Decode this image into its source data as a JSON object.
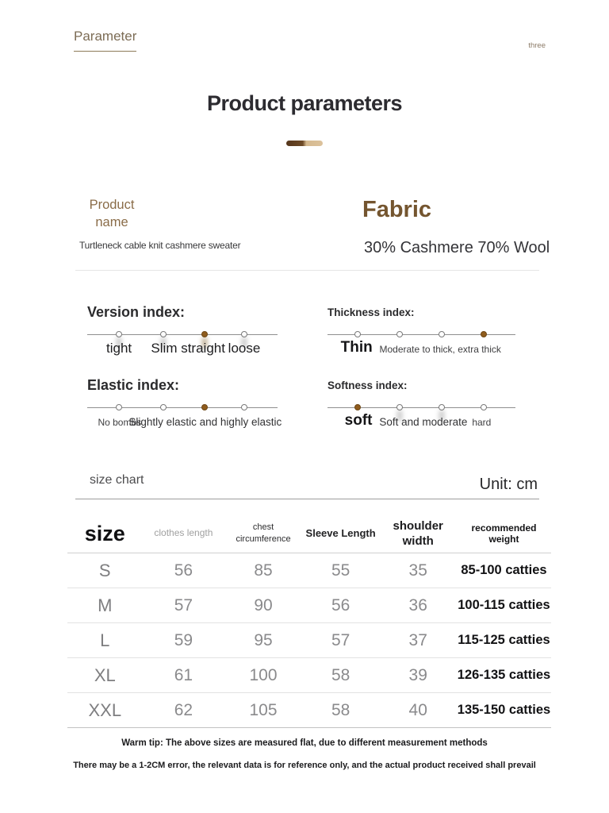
{
  "page": {
    "corner_label": "Parameter",
    "corner_note": "three",
    "title": "Product parameters"
  },
  "product": {
    "name_label": "Product name",
    "name_value": "Turtleneck cable knit cashmere sweater",
    "fabric_label": "Fabric",
    "fabric_value": "30% Cashmere 70% Wool"
  },
  "indices": [
    {
      "id": "version",
      "label": "Version index:",
      "title_size": "t-lg",
      "dots": [
        {
          "x": 16.7,
          "active": false,
          "smudge": true
        },
        {
          "x": 40,
          "active": false,
          "smudge": true
        },
        {
          "x": 61.7,
          "active": true,
          "smudge": true
        },
        {
          "x": 82.5,
          "active": false,
          "smudge": true
        }
      ],
      "captions": [
        {
          "text": "tight",
          "x": 16.7,
          "size": "lg"
        },
        {
          "text": "Slim straight",
          "x": 53,
          "size": "lg"
        },
        {
          "text": "loose",
          "x": 82.5,
          "size": "lg"
        }
      ]
    },
    {
      "id": "thickness",
      "label": "Thickness index:",
      "title_size": "t-sm",
      "dots": [
        {
          "x": 16,
          "active": false,
          "smudge": false
        },
        {
          "x": 38.4,
          "active": false,
          "smudge": false
        },
        {
          "x": 60.8,
          "active": false,
          "smudge": false
        },
        {
          "x": 83.1,
          "active": true,
          "smudge": false
        }
      ],
      "captions": [
        {
          "text": "Thin",
          "x": 15.5,
          "size": "xl"
        },
        {
          "text": "Moderate to thick, extra thick",
          "x": 60,
          "size": "sm"
        }
      ]
    },
    {
      "id": "elastic",
      "label": "Elastic index:",
      "title_size": "t-lg",
      "dots": [
        {
          "x": 16.7,
          "active": false,
          "smudge": false
        },
        {
          "x": 40,
          "active": false,
          "smudge": false
        },
        {
          "x": 61.7,
          "active": true,
          "smudge": false
        },
        {
          "x": 82.5,
          "active": false,
          "smudge": false
        }
      ],
      "captions": [
        {
          "text": "No bombs",
          "x": 17,
          "size": "sm"
        },
        {
          "text": "Slightly elastic and highly elastic",
          "x": 62,
          "size": "md"
        }
      ]
    },
    {
      "id": "softness",
      "label": "Softness index:",
      "title_size": "t-sm",
      "dots": [
        {
          "x": 16,
          "active": true,
          "smudge": false
        },
        {
          "x": 38.4,
          "active": false,
          "smudge": true
        },
        {
          "x": 60.8,
          "active": false,
          "smudge": true
        },
        {
          "x": 83.1,
          "active": false,
          "smudge": false
        }
      ],
      "captions": [
        {
          "text": "soft",
          "x": 16.5,
          "size": "xl"
        },
        {
          "text": "Soft and moderate",
          "x": 51,
          "size": "md"
        },
        {
          "text": "hard",
          "x": 82,
          "size": "sm"
        }
      ]
    }
  ],
  "size_section": {
    "title": "size chart",
    "unit": "Unit: cm"
  },
  "size_table": {
    "headers": [
      "size",
      "clothes length",
      "chest circumference",
      "Sleeve Length",
      "shoulder width",
      "recommended weight"
    ],
    "rows": [
      [
        "S",
        "56",
        "85",
        "55",
        "35",
        "85-100 catties"
      ],
      [
        "M",
        "57",
        "90",
        "56",
        "36",
        "100-115 catties"
      ],
      [
        "L",
        "59",
        "95",
        "57",
        "37",
        "115-125 catties"
      ],
      [
        "XL",
        "61",
        "100",
        "58",
        "39",
        "126-135 catties"
      ],
      [
        "XXL",
        "62",
        "105",
        "58",
        "40",
        "135-150 catties"
      ]
    ]
  },
  "footnotes": [
    "Warm tip: The above sizes are measured flat, due to different measurement methods",
    "There may be a 1-2CM error, the relevant data is for reference only, and the actual product received shall prevail"
  ],
  "colors": {
    "accent_brown": "#74552f",
    "muted_brown": "#7c6c55",
    "active_dot": "#8f5c1d",
    "text_dark": "#242427",
    "value_gray": "#8a8a8c",
    "bar_grad_start": "#55361c",
    "bar_grad_end": "#dcc29c"
  }
}
